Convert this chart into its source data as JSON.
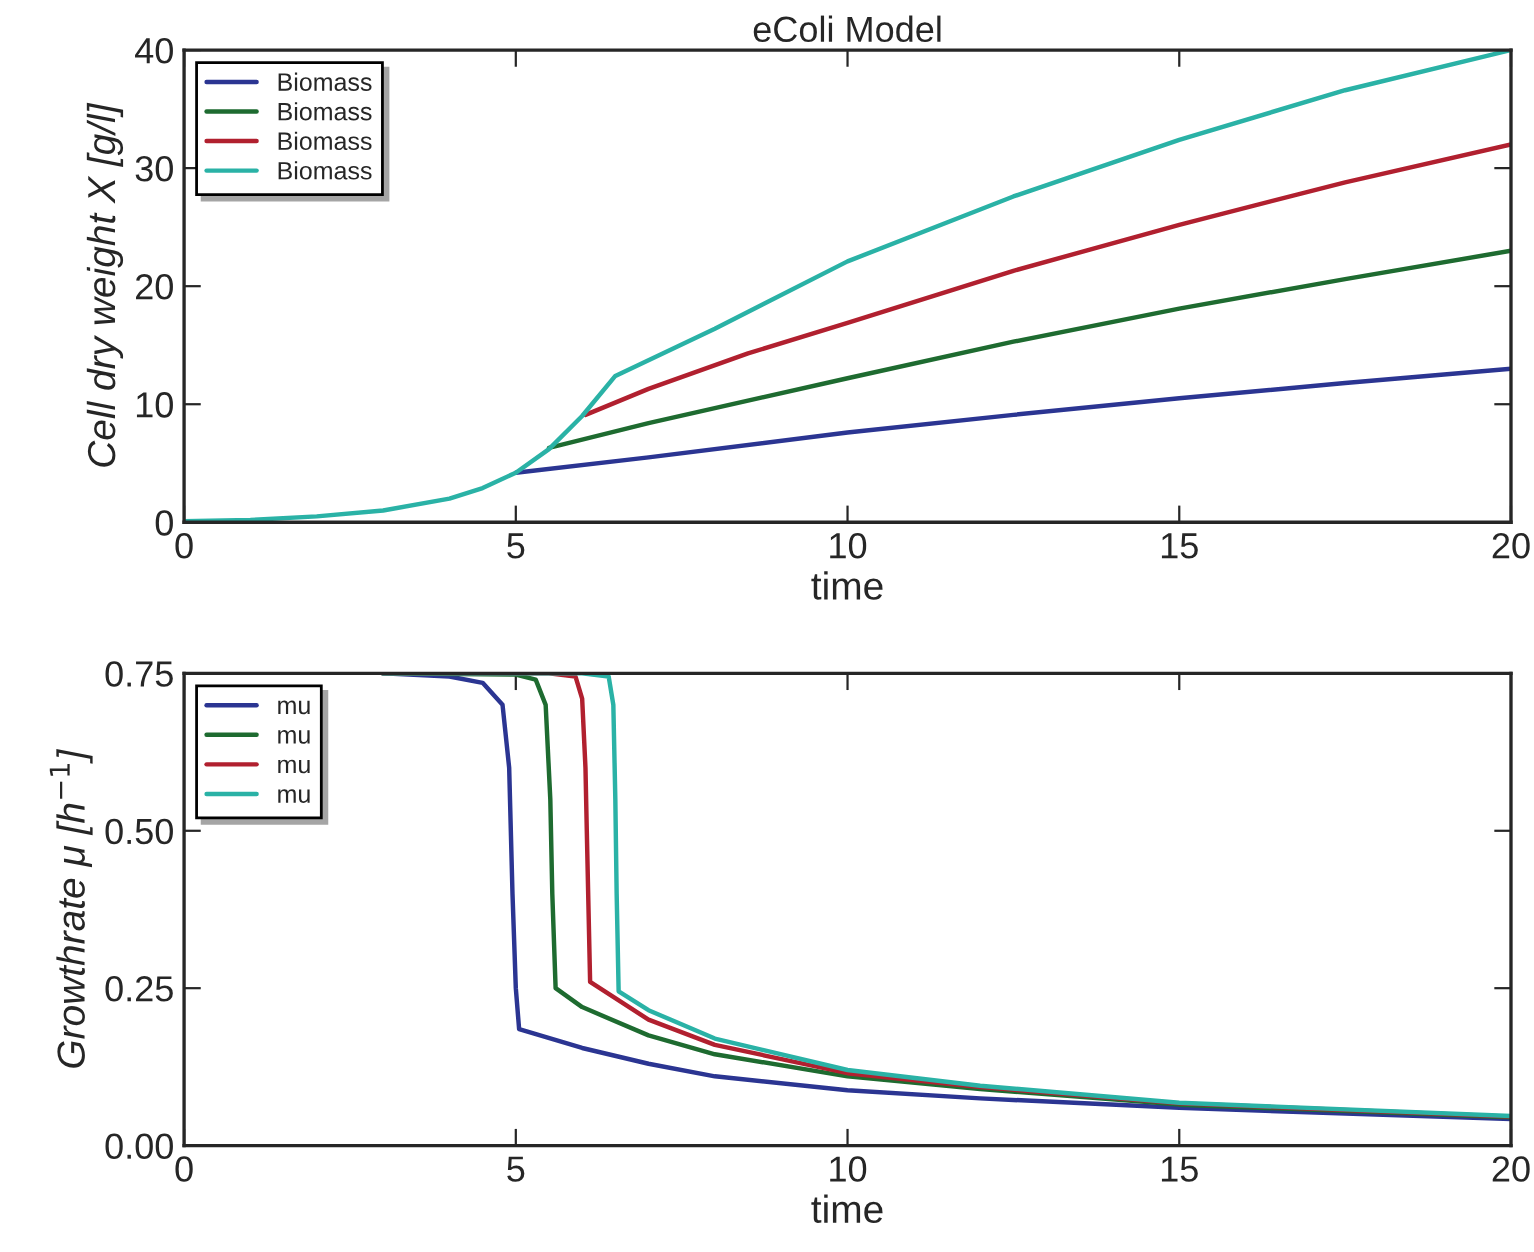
{
  "chart_data": [
    {
      "type": "line",
      "title": "eColi Model",
      "xlabel": "time",
      "ylabel": "Cell dry weight X [g/l]",
      "xlim": [
        0,
        20
      ],
      "xticks": [
        0,
        5,
        10,
        15,
        20
      ],
      "ylim": [
        0,
        40
      ],
      "yticks": [
        0,
        10,
        20,
        30,
        40
      ],
      "grid": false,
      "legend": "top left",
      "series": [
        {
          "name": "Biomass",
          "color": "#2b3592",
          "x": [
            5,
            7,
            10,
            12.5,
            15,
            17.5,
            20
          ],
          "values": [
            4.2,
            5.5,
            7.6,
            9.1,
            10.5,
            11.8,
            13.0
          ]
        },
        {
          "name": "Biomass",
          "color": "#1e6b30",
          "x": [
            5.5,
            7,
            10,
            12.5,
            15,
            17.5,
            20
          ],
          "values": [
            6.3,
            8.4,
            12.2,
            15.3,
            18.1,
            20.6,
            23.0
          ]
        },
        {
          "name": "Biomass",
          "color": "#b1202f",
          "x": [
            6.05,
            7,
            8.5,
            10,
            12.5,
            15,
            17.5,
            20
          ],
          "values": [
            9.1,
            11.3,
            14.3,
            16.9,
            21.3,
            25.2,
            28.8,
            32.0
          ]
        },
        {
          "name": "Biomass",
          "color": "#2ab2a6",
          "x": [
            0,
            1,
            2,
            3,
            4,
            4.5,
            5,
            5.5,
            6,
            6.5,
            8,
            10,
            12.5,
            15,
            17.5,
            20
          ],
          "values": [
            0.1,
            0.2,
            0.5,
            1.0,
            2.0,
            2.9,
            4.2,
            6.2,
            9.0,
            12.4,
            16.4,
            22.1,
            27.6,
            32.4,
            36.6,
            40.0
          ]
        }
      ]
    },
    {
      "type": "line",
      "xlabel": "time",
      "ylabel": "Growthrate μ [h$^{−1}$]",
      "xlim": [
        0,
        20
      ],
      "xticks": [
        0,
        5,
        10,
        15,
        20
      ],
      "ylim": [
        0,
        0.75
      ],
      "yticks": [
        {
          "value": 0,
          "label": "0.00"
        },
        {
          "value": 0.25,
          "label": "0.25"
        },
        {
          "value": 0.5,
          "label": "0.50"
        },
        {
          "value": 0.75,
          "label": "0.75"
        }
      ],
      "grid": false,
      "legend": "top left",
      "series": [
        {
          "name": "mu",
          "color": "#2b3592",
          "x": [
            3,
            4,
            4.5,
            4.8,
            4.9,
            4.95,
            5.0,
            5.05,
            6,
            7,
            8,
            10,
            12,
            15,
            20
          ],
          "values": [
            0.75,
            0.745,
            0.735,
            0.7,
            0.6,
            0.4,
            0.25,
            0.185,
            0.155,
            0.13,
            0.11,
            0.088,
            0.075,
            0.06,
            0.042
          ]
        },
        {
          "name": "mu",
          "color": "#1e6b30",
          "x": [
            3,
            5,
            5.3,
            5.45,
            5.52,
            5.55,
            5.6,
            6,
            7,
            8,
            10,
            12,
            15,
            20
          ],
          "values": [
            0.75,
            0.748,
            0.74,
            0.7,
            0.55,
            0.4,
            0.25,
            0.22,
            0.175,
            0.145,
            0.11,
            0.09,
            0.065,
            0.045
          ]
        },
        {
          "name": "mu",
          "color": "#b1202f",
          "x": [
            3,
            5.5,
            5.9,
            6.0,
            6.05,
            6.07,
            6.12,
            7,
            8,
            10,
            12,
            15,
            20
          ],
          "values": [
            0.75,
            0.75,
            0.745,
            0.71,
            0.6,
            0.5,
            0.26,
            0.2,
            0.16,
            0.115,
            0.093,
            0.067,
            0.046
          ]
        },
        {
          "name": "mu",
          "color": "#2ab2a6",
          "x": [
            3,
            6,
            6.4,
            6.47,
            6.5,
            6.52,
            6.55,
            7,
            8,
            10,
            12,
            15,
            20
          ],
          "values": [
            0.75,
            0.75,
            0.745,
            0.7,
            0.55,
            0.4,
            0.245,
            0.215,
            0.17,
            0.12,
            0.095,
            0.068,
            0.047
          ]
        }
      ]
    }
  ]
}
